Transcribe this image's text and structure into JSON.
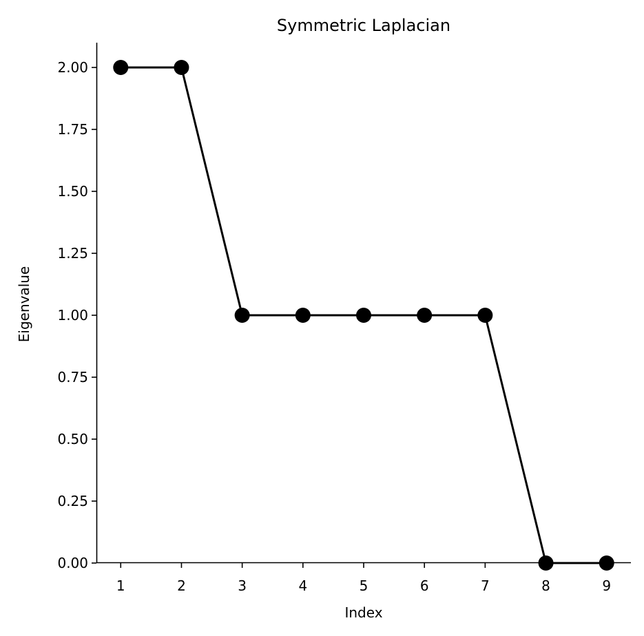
{
  "chart_data": {
    "type": "line",
    "title": "Symmetric Laplacian",
    "xlabel": "Index",
    "ylabel": "Eigenvalue",
    "x": [
      1,
      2,
      3,
      4,
      5,
      6,
      7,
      8,
      9
    ],
    "y": [
      2.0,
      2.0,
      1.0,
      1.0,
      1.0,
      1.0,
      1.0,
      0.0,
      0.0
    ],
    "xlim": [
      0.6,
      9.4
    ],
    "ylim": [
      0,
      2.1
    ],
    "xticks": [
      1,
      2,
      3,
      4,
      5,
      6,
      7,
      8,
      9
    ],
    "yticks": [
      0,
      0.25,
      0.5,
      0.75,
      1.0,
      1.25,
      1.5,
      1.75,
      2.0
    ],
    "ytick_labels": [
      "0.00",
      "0.25",
      "0.50",
      "0.75",
      "1.00",
      "1.25",
      "1.50",
      "1.75",
      "2.00"
    ],
    "grid": false,
    "line_color": "#000000",
    "marker_color": "#000000",
    "marker": "circle"
  }
}
